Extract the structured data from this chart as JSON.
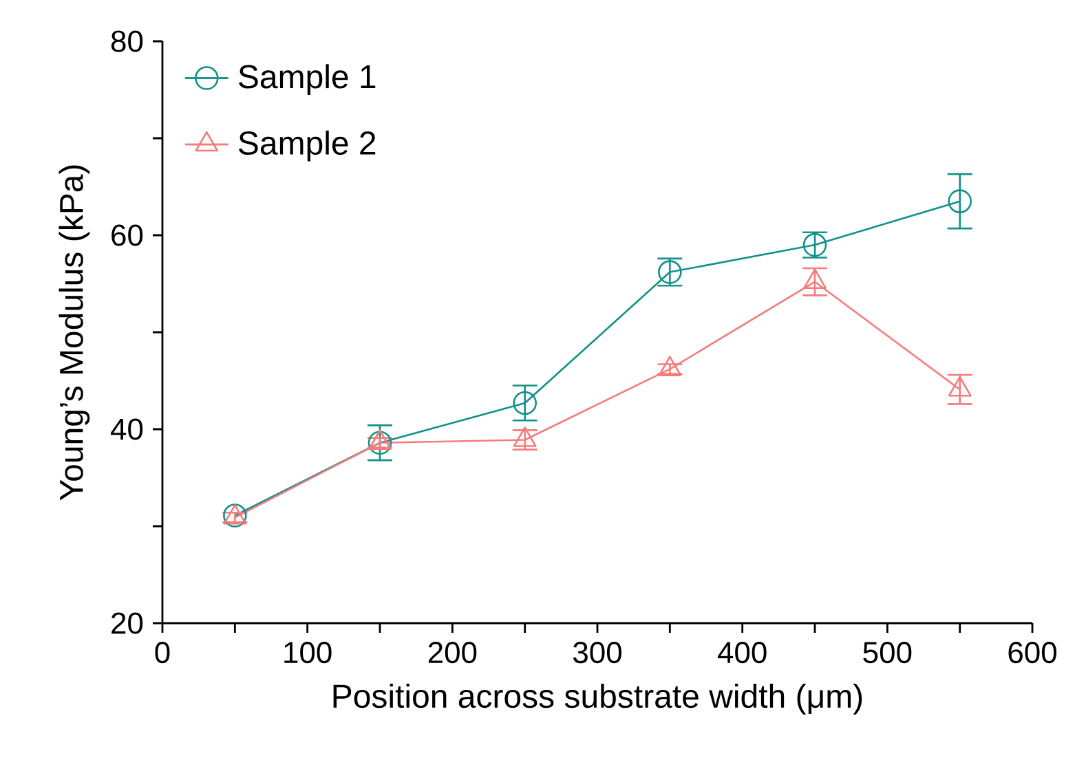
{
  "chart_data": {
    "type": "line",
    "xlabel": "Position across substrate width (μm)",
    "ylabel": "Young’s Modulus (kPa)",
    "x": [
      50,
      150,
      250,
      350,
      450,
      550
    ],
    "series": [
      {
        "name": "Sample 1",
        "color": "#12918b",
        "marker": "circle",
        "values": [
          31.1,
          38.6,
          42.7,
          56.2,
          59.0,
          63.5
        ],
        "errors": [
          null,
          1.8,
          1.8,
          1.4,
          1.3,
          2.8
        ]
      },
      {
        "name": "Sample 2",
        "color": "#f47c7c",
        "marker": "triangle",
        "values": [
          30.9,
          38.6,
          38.9,
          46.2,
          55.2,
          44.1
        ],
        "errors": [
          0.5,
          0.5,
          1.0,
          0.5,
          1.4,
          1.5
        ]
      }
    ],
    "xlim": [
      0,
      600
    ],
    "ylim": [
      20,
      80
    ],
    "xticks": [
      0,
      {
        "value": 50,
        "label": null
      },
      100,
      {
        "value": 150,
        "label": null
      },
      200,
      {
        "value": 250,
        "label": null
      },
      300,
      {
        "value": 350,
        "label": null
      },
      400,
      {
        "value": 450,
        "label": null
      },
      500,
      {
        "value": 550,
        "label": null
      },
      600
    ],
    "yticks": [
      20,
      {
        "value": 30,
        "label": null
      },
      40,
      {
        "value": 50,
        "label": null
      },
      60,
      {
        "value": 70,
        "label": null
      },
      80
    ],
    "grid": false,
    "legend": "top left",
    "line_style": "solid"
  }
}
